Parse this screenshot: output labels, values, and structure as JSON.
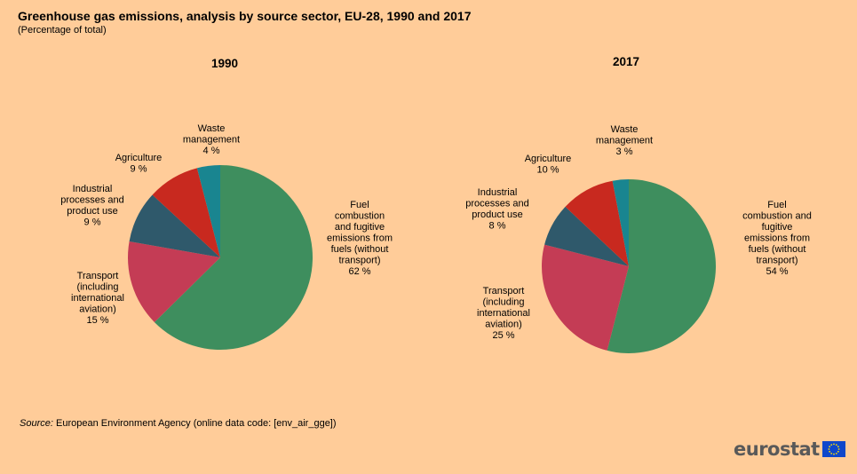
{
  "title": "Greenhouse gas emissions, analysis by source sector, EU-28, 1990 and 2017",
  "subtitle": "(Percentage of total)",
  "source": {
    "label": "Source:",
    "text": "European Environment Agency (online data code: [env_air_gge])"
  },
  "logo": {
    "text": "eurostat",
    "flag_color": "#0E47CB",
    "star_color": "#FFDD00"
  },
  "colors": {
    "background": "#FFCC99",
    "fuel": "#3E8E5E",
    "transport": "#C43C55",
    "industrial": "#2F596B",
    "agriculture": "#C8291F",
    "waste": "#198590"
  },
  "chart_data": [
    {
      "type": "pie",
      "title": "1990",
      "start_angle_deg": 0,
      "direction": "clockwise",
      "slices": [
        {
          "key": "fuel",
          "label": [
            "Fuel",
            "combustion",
            "and fugitive",
            "emissions from",
            "fuels (without",
            "transport)"
          ],
          "value": 62,
          "value_label": "62 %"
        },
        {
          "key": "transport",
          "label": [
            "Transport",
            "(including",
            "international",
            "aviation)"
          ],
          "value": 15,
          "value_label": "15 %"
        },
        {
          "key": "industrial",
          "label": [
            "Industrial",
            "processes and",
            "product use"
          ],
          "value": 9,
          "value_label": "9 %"
        },
        {
          "key": "agriculture",
          "label": [
            "Agriculture"
          ],
          "value": 9,
          "value_label": "9 %"
        },
        {
          "key": "waste",
          "label": [
            "Waste",
            "management"
          ],
          "value": 4,
          "value_label": "4 %"
        }
      ]
    },
    {
      "type": "pie",
      "title": "2017",
      "start_angle_deg": 0,
      "direction": "clockwise",
      "slices": [
        {
          "key": "fuel",
          "label": [
            "Fuel",
            "combustion and",
            "fugitive",
            "emissions from",
            "fuels (without",
            "transport)"
          ],
          "value": 54,
          "value_label": "54 %"
        },
        {
          "key": "transport",
          "label": [
            "Transport",
            "(including",
            "international",
            "aviation)"
          ],
          "value": 25,
          "value_label": "25 %"
        },
        {
          "key": "industrial",
          "label": [
            "Industrial",
            "processes and",
            "product use"
          ],
          "value": 8,
          "value_label": "8 %"
        },
        {
          "key": "agriculture",
          "label": [
            "Agriculture"
          ],
          "value": 10,
          "value_label": "10 %"
        },
        {
          "key": "waste",
          "label": [
            "Waste",
            "management"
          ],
          "value": 3,
          "value_label": "3 %"
        }
      ]
    }
  ]
}
